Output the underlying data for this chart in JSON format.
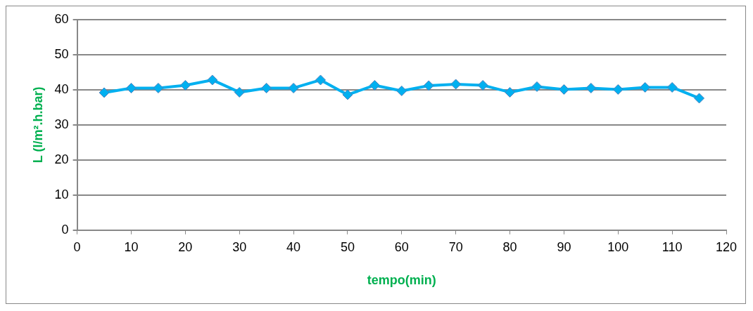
{
  "chart_data": {
    "type": "line",
    "xlabel": "tempo(min)",
    "ylabel": "L (l/m².h.bar)",
    "x": [
      5,
      10,
      15,
      20,
      25,
      30,
      35,
      40,
      45,
      50,
      55,
      60,
      65,
      70,
      75,
      80,
      85,
      90,
      95,
      100,
      105,
      110,
      115
    ],
    "series": [
      {
        "color": "#00b0f0",
        "values": [
          39.2,
          40.5,
          40.5,
          41.3,
          42.8,
          39.3,
          40.5,
          40.5,
          42.8,
          38.6,
          41.3,
          39.7,
          41.2,
          41.6,
          41.3,
          39.3,
          40.9,
          40.1,
          40.5,
          40.1,
          40.7,
          40.7,
          37.6
        ]
      }
    ],
    "xlim": [
      0,
      120
    ],
    "xticks": [
      0,
      10,
      20,
      30,
      40,
      50,
      60,
      70,
      80,
      90,
      100,
      110,
      120
    ],
    "ylim": [
      0,
      60
    ],
    "yticks": [
      0,
      10,
      20,
      30,
      40,
      50,
      60
    ],
    "grid": "y",
    "legend": false,
    "marker": "diamond",
    "line_style": "solid"
  }
}
